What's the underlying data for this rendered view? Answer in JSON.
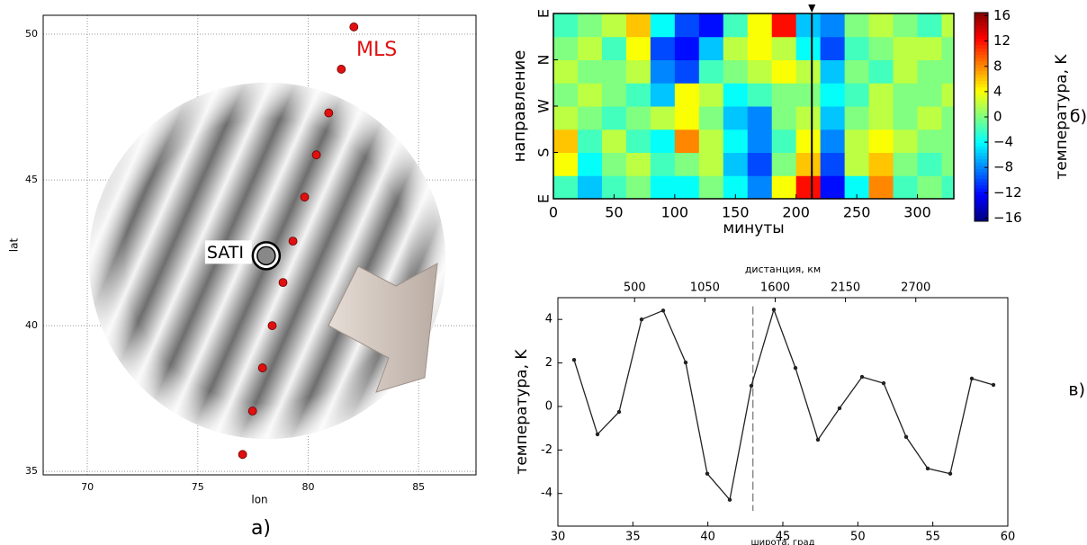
{
  "chart_data": [
    {
      "type": "scatter",
      "xlabel": "lon",
      "ylabel": "lat",
      "panel_label": "a)",
      "xlim": [
        68,
        87.6
      ],
      "ylim": [
        34.88,
        50.65
      ],
      "xticks": [
        70,
        75,
        80,
        85
      ],
      "yticks": [
        35,
        40,
        45,
        50
      ],
      "grid": true,
      "series": [
        {
          "name": "MLS",
          "color": "#e01010",
          "x": [
            82.07,
            81.5,
            80.93,
            80.37,
            79.84,
            79.31,
            78.86,
            78.37,
            77.93,
            77.48,
            77.03
          ],
          "values": [
            50.25,
            48.8,
            47.3,
            45.86,
            44.41,
            42.9,
            41.48,
            40.0,
            38.55,
            37.07,
            35.58
          ]
        }
      ],
      "annotations": [
        {
          "label": "SATI",
          "x": 78.1,
          "y": 42.4
        }
      ]
    },
    {
      "type": "heatmap",
      "xlabel": "минуты",
      "ylabel": "направление",
      "panel_label": "б)",
      "xlim": [
        0,
        330
      ],
      "ylim": [
        0,
        360
      ],
      "xticks": [
        0,
        50,
        100,
        150,
        200,
        250,
        300
      ],
      "yticks": [
        {
          "value": 0,
          "label": "E"
        },
        {
          "value": 90,
          "label": "S"
        },
        {
          "value": 180,
          "label": "W"
        },
        {
          "value": 270,
          "label": "N"
        },
        {
          "value": 360,
          "label": "E"
        }
      ],
      "x": [
        0,
        20,
        40,
        60,
        80,
        100,
        120,
        140,
        160,
        180,
        200,
        220,
        240,
        260,
        280,
        300,
        320
      ],
      "y": [
        0,
        45,
        90,
        135,
        180,
        225,
        270,
        315
      ],
      "values": [
        [
          -2,
          -6,
          -2,
          0,
          -4,
          -4,
          0,
          -4,
          -8,
          4,
          12,
          -12,
          -4,
          8,
          -2,
          0,
          -2
        ],
        [
          4,
          -4,
          0,
          2,
          -2,
          0,
          2,
          -6,
          -10,
          0,
          6,
          -10,
          2,
          6,
          0,
          -2,
          0
        ],
        [
          6,
          -2,
          2,
          -2,
          -4,
          8,
          2,
          -4,
          -8,
          -2,
          4,
          -8,
          2,
          4,
          2,
          0,
          0
        ],
        [
          2,
          0,
          -2,
          0,
          2,
          4,
          0,
          -6,
          -8,
          0,
          2,
          -6,
          0,
          2,
          0,
          2,
          0
        ],
        [
          0,
          2,
          0,
          -2,
          -6,
          4,
          2,
          -4,
          -2,
          0,
          0,
          -4,
          -2,
          2,
          0,
          0,
          2
        ],
        [
          2,
          0,
          0,
          2,
          -8,
          -10,
          -2,
          0,
          2,
          4,
          2,
          -6,
          0,
          -2,
          2,
          0,
          0
        ],
        [
          0,
          2,
          -2,
          4,
          -10,
          -12,
          -6,
          2,
          4,
          2,
          -4,
          -10,
          -2,
          0,
          2,
          2,
          0
        ],
        [
          -2,
          0,
          2,
          6,
          -4,
          -10,
          -12,
          -2,
          4,
          12,
          -6,
          -8,
          0,
          2,
          0,
          -2,
          2
        ]
      ],
      "vline": 213,
      "colorbar": {
        "label": "температура, K",
        "lim": [
          -16.5,
          16.5
        ],
        "ticks": [
          16,
          12,
          8,
          4,
          0,
          {
            "value": -4,
            "label": "−4"
          },
          {
            "value": -8,
            "label": "−8"
          },
          {
            "value": -12,
            "label": "−12"
          },
          {
            "value": -16,
            "label": "−16"
          }
        ]
      }
    },
    {
      "type": "line",
      "xlabel": "широта, град",
      "ylabel": "температура, K",
      "x2label": "дистанция, км",
      "panel_label": "в)",
      "xlim": [
        30,
        60
      ],
      "ylim": [
        -5.5,
        5
      ],
      "xticks": [
        30,
        35,
        40,
        45,
        50,
        55,
        60
      ],
      "yticks": [
        -4,
        -2,
        0,
        2,
        4
      ],
      "x2lim": [
        -100,
        3420
      ],
      "x2ticks": [
        500,
        1050,
        1600,
        2150,
        2700
      ],
      "x": [
        31.08,
        32.64,
        34.08,
        35.58,
        37.02,
        38.52,
        39.96,
        41.46,
        42.9,
        44.4,
        45.84,
        47.34,
        48.78,
        50.28,
        51.72,
        53.22,
        54.66,
        56.16,
        57.6,
        59.04
      ],
      "series": [
        {
          "color": "#222222",
          "values": [
            2.14,
            -1.28,
            -0.25,
            4.0,
            4.41,
            2.02,
            -3.09,
            -4.29,
            0.95,
            4.45,
            1.77,
            -1.53,
            -0.08,
            1.36,
            1.07,
            -1.4,
            -2.85,
            -3.09,
            1.28,
            0.99
          ]
        }
      ],
      "vline": 43.0
    }
  ]
}
